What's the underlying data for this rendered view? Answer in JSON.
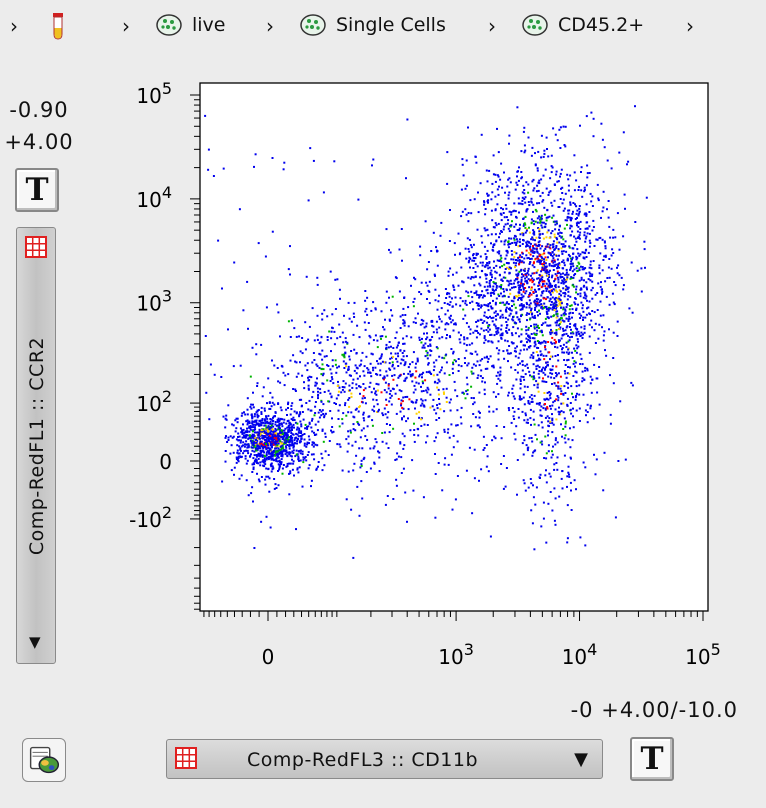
{
  "breadcrumb": {
    "items": [
      {
        "label": "live"
      },
      {
        "label": "Single Cells"
      },
      {
        "label": "CD45.2+"
      }
    ]
  },
  "y_axis": {
    "parameter": "Comp-RedFL1 :: CCR2",
    "transform_top": "-0.90",
    "transform_bottom": "+4.00",
    "button": "T"
  },
  "x_axis": {
    "parameter": "Comp-RedFL3 :: CD11b",
    "transform": "-0 +4.00/-10.0",
    "button": "T"
  },
  "colors": {
    "low": "#0000ee",
    "mid": "#00b400",
    "mid2": "#ffd200",
    "high": "#ff0000",
    "panel_bg": "#ececec"
  },
  "chart_data": {
    "type": "scatter",
    "title": "",
    "xlabel": "Comp-RedFL3 :: CD11b",
    "ylabel": "Comp-RedFL1 :: CCR2",
    "x_scale": "biexponential",
    "y_scale": "biexponential",
    "xlim": [
      -300,
      100000
    ],
    "ylim": [
      -1000,
      100000
    ],
    "x_ticks": [
      {
        "label": "0",
        "value": 0
      },
      {
        "label": "10^3",
        "value": 1000
      },
      {
        "label": "10^4",
        "value": 10000
      },
      {
        "label": "10^5",
        "value": 100000
      }
    ],
    "y_ticks": [
      {
        "label": "-10^2",
        "value": -100
      },
      {
        "label": "0",
        "value": 0
      },
      {
        "label": "10^2",
        "value": 100
      },
      {
        "label": "10^3",
        "value": 1000
      },
      {
        "label": "10^4",
        "value": 10000
      },
      {
        "label": "10^5",
        "value": 100000
      }
    ],
    "populations": [
      {
        "name": "",
        "x_center": 0,
        "y_center": 30,
        "approx_events": 900
      },
      {
        "name": "",
        "x_center": 300,
        "y_center": 150,
        "approx_events": 700
      },
      {
        "name": "",
        "x_center": 4500,
        "y_center": 2000,
        "approx_events": 1600
      },
      {
        "name": "",
        "x_center": 6000,
        "y_center": 200,
        "approx_events": 500
      }
    ]
  }
}
